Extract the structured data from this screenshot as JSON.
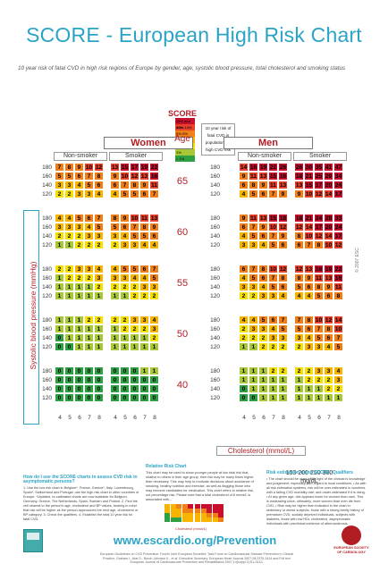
{
  "title": "SCORE - European High Risk Chart",
  "subtitle": "10 year risk of fatal CVD in high risk regions of Europe by gender, age, systolic blood pressure, total cholesterol and smoking status",
  "score_logo": "SCORE",
  "legend": {
    "levels": [
      {
        "label": "15% and over",
        "color": "#c8102e"
      },
      {
        "label": "10%-14%",
        "color": "#e8412c"
      },
      {
        "label": "5%-9%",
        "color": "#f07f1a"
      },
      {
        "label": "3%-4%",
        "color": "#f7b500"
      },
      {
        "label": "2%",
        "color": "#f5e000"
      },
      {
        "label": "1%",
        "color": "#a8c837"
      },
      {
        "label": "< 1%",
        "color": "#2ea043"
      }
    ],
    "note": "10 year risk of fatal CVD in populations at high CVD risk"
  },
  "women_label": "Women",
  "men_label": "Men",
  "non_smoker_label": "Non-smoker",
  "smoker_label": "Smoker",
  "age_title": "Age",
  "ylabel": "Systolic blood pressure (mmHg)",
  "sbp_values": [
    "180",
    "160",
    "140",
    "120"
  ],
  "chol_label": "Cholesterol (mmol/L)",
  "chol_values": [
    "4",
    "5",
    "6",
    "7",
    "8"
  ],
  "mgdl_values": "150 200 250 300",
  "mgdl_unit": "mg/dL",
  "copyright": "© 2007 ESC",
  "ages": [
    {
      "age": "65",
      "women_non": [
        [
          7,
          8,
          9,
          10,
          12
        ],
        [
          5,
          5,
          6,
          7,
          8
        ],
        [
          3,
          3,
          4,
          5,
          6
        ],
        [
          2,
          2,
          3,
          3,
          4
        ]
      ],
      "women_smk": [
        [
          13,
          15,
          17,
          19,
          22
        ],
        [
          9,
          10,
          12,
          13,
          16
        ],
        [
          6,
          7,
          8,
          9,
          11
        ],
        [
          4,
          5,
          5,
          6,
          7
        ]
      ],
      "men_non": [
        [
          14,
          16,
          19,
          22,
          26
        ],
        [
          9,
          11,
          13,
          15,
          16
        ],
        [
          6,
          8,
          9,
          11,
          13
        ],
        [
          4,
          5,
          6,
          7,
          9
        ]
      ],
      "men_smk": [
        [
          26,
          30,
          35,
          41,
          47
        ],
        [
          18,
          21,
          25,
          29,
          34
        ],
        [
          13,
          15,
          17,
          20,
          24
        ],
        [
          9,
          10,
          12,
          14,
          17
        ]
      ]
    },
    {
      "age": "60",
      "women_non": [
        [
          4,
          4,
          5,
          6,
          7
        ],
        [
          3,
          3,
          3,
          4,
          5
        ],
        [
          2,
          2,
          2,
          3,
          3
        ],
        [
          1,
          1,
          2,
          2,
          2
        ]
      ],
      "women_smk": [
        [
          8,
          9,
          10,
          11,
          13
        ],
        [
          5,
          6,
          7,
          8,
          9
        ],
        [
          3,
          4,
          5,
          5,
          6
        ],
        [
          2,
          3,
          3,
          4,
          4
        ]
      ],
      "men_non": [
        [
          9,
          11,
          13,
          15,
          18
        ],
        [
          6,
          7,
          9,
          10,
          12
        ],
        [
          4,
          5,
          6,
          7,
          9
        ],
        [
          3,
          3,
          4,
          5,
          6
        ]
      ],
      "men_smk": [
        [
          18,
          21,
          24,
          28,
          33
        ],
        [
          12,
          14,
          17,
          20,
          24
        ],
        [
          8,
          10,
          12,
          14,
          17
        ],
        [
          6,
          7,
          8,
          10,
          12
        ]
      ]
    },
    {
      "age": "55",
      "women_non": [
        [
          2,
          2,
          3,
          3,
          4
        ],
        [
          1,
          2,
          2,
          2,
          3
        ],
        [
          1,
          1,
          1,
          1,
          2
        ],
        [
          1,
          1,
          1,
          1,
          1
        ]
      ],
      "women_smk": [
        [
          4,
          5,
          5,
          6,
          7
        ],
        [
          3,
          3,
          4,
          4,
          5
        ],
        [
          2,
          2,
          2,
          3,
          3
        ],
        [
          1,
          1,
          2,
          2,
          2
        ]
      ],
      "men_non": [
        [
          6,
          7,
          8,
          10,
          12
        ],
        [
          4,
          5,
          6,
          7,
          8
        ],
        [
          3,
          3,
          4,
          5,
          6
        ],
        [
          2,
          2,
          3,
          3,
          4
        ]
      ],
      "men_smk": [
        [
          12,
          13,
          16,
          19,
          22
        ],
        [
          8,
          9,
          11,
          13,
          16
        ],
        [
          5,
          6,
          8,
          9,
          11
        ],
        [
          4,
          4,
          5,
          6,
          8
        ]
      ]
    },
    {
      "age": "50",
      "women_non": [
        [
          1,
          1,
          1,
          2,
          2
        ],
        [
          1,
          1,
          1,
          1,
          1
        ],
        [
          0,
          1,
          1,
          1,
          1
        ],
        [
          0,
          0,
          1,
          1,
          1
        ]
      ],
      "women_smk": [
        [
          2,
          2,
          3,
          3,
          4
        ],
        [
          1,
          2,
          2,
          2,
          3
        ],
        [
          1,
          1,
          1,
          1,
          2
        ],
        [
          1,
          1,
          1,
          1,
          1
        ]
      ],
      "men_non": [
        [
          4,
          4,
          5,
          6,
          7
        ],
        [
          2,
          3,
          3,
          4,
          5
        ],
        [
          2,
          2,
          2,
          3,
          3
        ],
        [
          1,
          1,
          2,
          2,
          2
        ]
      ],
      "men_smk": [
        [
          7,
          8,
          10,
          12,
          14
        ],
        [
          5,
          6,
          7,
          8,
          10
        ],
        [
          3,
          4,
          5,
          6,
          7
        ],
        [
          2,
          3,
          3,
          4,
          5
        ]
      ]
    },
    {
      "age": "40",
      "women_non": [
        [
          0,
          0,
          0,
          0,
          0
        ],
        [
          0,
          0,
          0,
          0,
          0
        ],
        [
          0,
          0,
          0,
          0,
          0
        ],
        [
          0,
          0,
          0,
          0,
          0
        ]
      ],
      "women_smk": [
        [
          0,
          0,
          0,
          1,
          1
        ],
        [
          0,
          0,
          0,
          0,
          0
        ],
        [
          0,
          0,
          0,
          0,
          0
        ],
        [
          0,
          0,
          0,
          0,
          0
        ]
      ],
      "men_non": [
        [
          1,
          1,
          1,
          2,
          2
        ],
        [
          1,
          1,
          1,
          1,
          1
        ],
        [
          0,
          1,
          1,
          1,
          1
        ],
        [
          0,
          0,
          1,
          1,
          1
        ]
      ],
      "men_smk": [
        [
          2,
          2,
          3,
          3,
          4
        ],
        [
          1,
          2,
          2,
          2,
          3
        ],
        [
          1,
          1,
          1,
          2,
          2
        ],
        [
          1,
          1,
          1,
          1,
          1
        ]
      ]
    }
  ],
  "bottom": {
    "left_head": "How do I use the SCORE charts to assess CVD risk in asymptomatic persons?",
    "left_text": "1. Use the low risk chart in Belgium*, France, Greece*, Italy, Luxembourg, Spain*, Switzerland and Portugal; use the high risk chart in other countries of Europe. *Updated, re-calibrated charts are now available for Belgium, Germany, Greece, The Netherlands, Spain, Sweden and Poland. 2. Find the cell nearest to the person's age, cholesterol and BP values, bearing in mind that risk will be higher as the person approaches the next age, cholesterol or BP category. 3. Check the qualifiers. 4. Establish the total 10 year risk for fatal CVD.",
    "mid_head": "Relative Risk Chart",
    "mid_text": "This chart may be used to show younger people at low total risk that, relative to others in their age group, their risk may be many times higher than necessary. This may help to motivate decisions about avoidance of smoking, healthy nutrition and exercise, as well as flagging those who may become candidates for medication. This chart refers to relative risk, not percentage risk. Please note that a total cholesterol of 8 mmol/L is associated with...",
    "mini_chol": "Cholesterol (mmol/L)",
    "right_head": "Risk estimation using SCORE: Qualifiers",
    "right_text": "• The chart should be used in the light of the clinician's knowledge and judgement, especially with regard to local conditions. • As with all risk estimation systems, risk will be over-estimated in countries with a falling CVD mortality rate, and under-estimated if it is rising. • At any given age, risk appears lower for women than men. This is misleading since, ultimately, more women than men die from CVD. • Risk may be higher than indicated in the chart in: sedentary or obese subjects, those with a strong family history of premature CVD, socially deprived individuals, subjects with diabetes, those with low HDL cholesterol, asymptomatic individuals with preclinical evidence of atherosclerosis."
  },
  "footer_url": "www.escardio.org/Prevention",
  "footer_ref": "European Guidelines on CVD Prevention: Fourth Joint European Societies' Task Force on Cardiovascular Disease Prevention in Clinical Practice. Graham I., Atar D., Borch-Johnsen K., et al. Executive Summary. European Heart Journal 2007;28:2375-2414 and Full text European Journal of Cardiovascular Prevention and Rehabilitation 2007;14(suppl 2):S1-S113.",
  "esc_logo_text": "EUROPEAN SOCIETY OF CARDIOLOGY"
}
